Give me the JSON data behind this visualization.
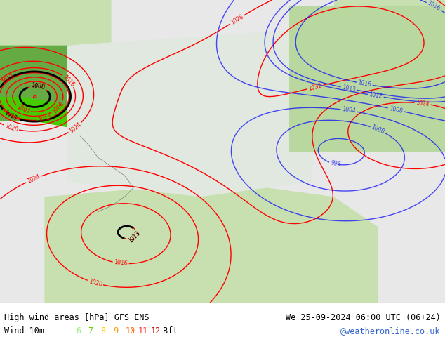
{
  "title_left": "High wind areas [hPa] GFS ENS",
  "title_right": "We 25-09-2024 06:00 UTC (06+24)",
  "subtitle_left": "Wind 10m",
  "subtitle_right": "@weatheronline.co.uk",
  "bft_labels": [
    "6",
    "7",
    "8",
    "9",
    "10",
    "11",
    "12",
    "Bft"
  ],
  "bft_colors": [
    "#99ff99",
    "#66cc00",
    "#ffcc00",
    "#ff9900",
    "#ff6600",
    "#ff0000",
    "#cc0000",
    "#000000"
  ],
  "bg_color": "#f0f0f0",
  "map_bg": "#d8e8d8",
  "caption_bg": "#ffffff",
  "figsize": [
    6.34,
    4.9
  ],
  "dpi": 100
}
